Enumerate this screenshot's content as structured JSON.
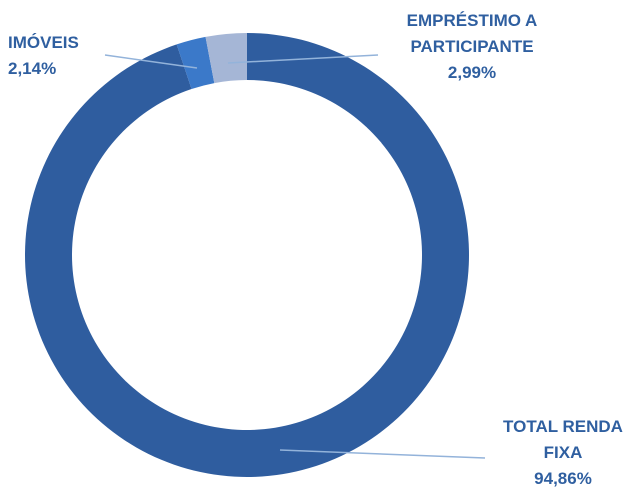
{
  "chart_data": {
    "type": "donut",
    "categories": [
      "TOTAL RENDA FIXA",
      "IMÓVEIS",
      "EMPRÉSTIMO A PARTICIPANTE"
    ],
    "values": [
      94.86,
      2.14,
      2.99
    ],
    "value_labels": [
      "94,86%",
      "2,14%",
      "2,99%"
    ],
    "colors": [
      "#2f5d9f",
      "#3b79c9",
      "#a5b6d6"
    ]
  }
}
